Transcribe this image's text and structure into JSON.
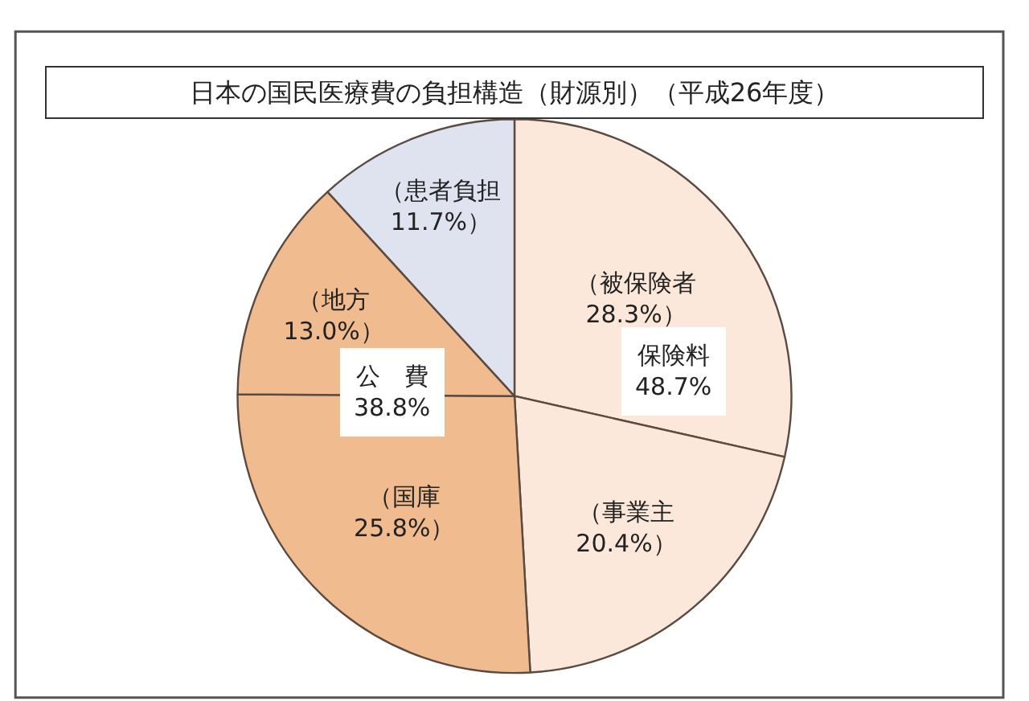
{
  "chart_data": {
    "type": "pie",
    "title": "日本の国民医療費の負担構造（財源別）（平成26年度）",
    "categories": [
      "（被保険者",
      "（事業主",
      "（国庫",
      "（地方",
      "（患者負担"
    ],
    "values": [
      28.3,
      20.4,
      25.8,
      13.0,
      11.7
    ],
    "colors": [
      "#fce8da",
      "#fce8da",
      "#f0bb8e",
      "#f0bb8e",
      "#dfe3f0"
    ],
    "value_labels": [
      "28.3%）",
      "20.4%）",
      "25.8%）",
      "13.0%）",
      "11.7%）"
    ],
    "annotations": [
      "保険料\n48.7%",
      "公　費\n38.8%"
    ],
    "legend": false
  }
}
